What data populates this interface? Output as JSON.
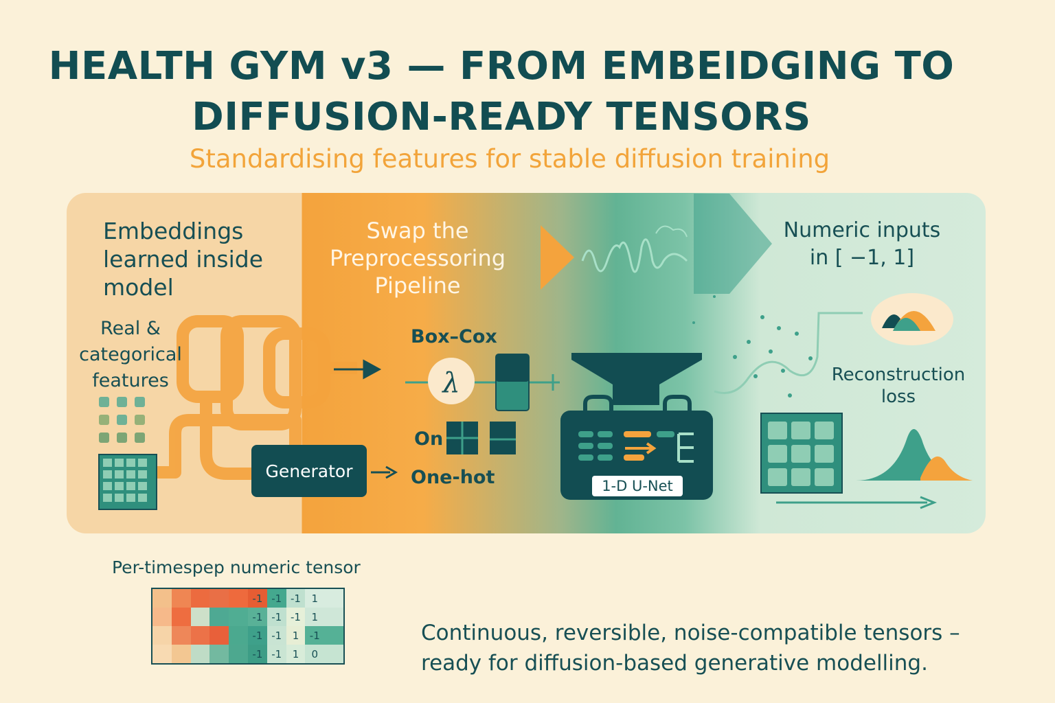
{
  "title": {
    "line1": "HEALTH GYM v3 — FROM EMBEIDGING TO",
    "line2": "DIFFUSION-READY TENSORS"
  },
  "subtitle": "Standardising features for stable diffusion training",
  "left_section": {
    "heading": [
      "Embeddings",
      "learned inside",
      "model"
    ],
    "features_label": [
      "Real &",
      "categorical",
      "features"
    ],
    "generator_label": "Generator"
  },
  "middle_section": {
    "heading": [
      "Swap the",
      "Preprocessoring",
      "Pipeline"
    ],
    "boxcox_label": "Box–Cox",
    "lambda_symbol": "λ",
    "on_label": "On",
    "onehot_label": "One-hot"
  },
  "right_section": {
    "heading": [
      "Numeric inputs",
      "in [ −1, 1]"
    ],
    "unet_label": "1-D U-Net",
    "reconstruction_label": [
      "Reconstruction",
      "loss"
    ]
  },
  "tensor": {
    "label": "Per-timespep numeric tensor",
    "rows": [
      [
        "",
        "",
        "",
        "",
        "",
        "-1",
        "-1",
        "-1",
        "1",
        ""
      ],
      [
        "",
        "",
        "",
        "",
        "",
        "-1",
        "-1",
        "-1",
        "1",
        ""
      ],
      [
        "",
        "",
        "",
        "",
        "",
        "-1",
        "-1",
        "1",
        "-1",
        ""
      ],
      [
        "",
        "",
        "",
        "",
        "",
        "-1",
        "-1",
        "1",
        "0",
        ""
      ]
    ],
    "colors": [
      [
        "#f3c08b",
        "#ef8653",
        "#ec6b3f",
        "#e96f46",
        "#ee6a3d",
        "#e65d33",
        "#44a88e",
        "#bfe0cf",
        "#d8ecdf",
        "#d8ecdf"
      ],
      [
        "#f6b98a",
        "#ee6d40",
        "#cde0c9",
        "#4ea993",
        "#50ad93",
        "#59b197",
        "#bfe0cf",
        "#e6f0d9",
        "#cfe7d8",
        "#cfe7d8"
      ],
      [
        "#f6d4a8",
        "#ee8759",
        "#ec7248",
        "#e8603a",
        "#4ba98f",
        "#3ea08a",
        "#c9e4d3",
        "#e7eed5",
        "#55b196",
        "#55b196"
      ],
      [
        "#f8dab2",
        "#f3c792",
        "#bfdcc6",
        "#73b9a0",
        "#4da88f",
        "#3d9d86",
        "#cae5d3",
        "#d8ecd9",
        "#c6e4d2",
        "#c6e4d2"
      ]
    ]
  },
  "caption": [
    "Continuous, reversible, noise-compatible tensors –",
    "ready for diffusion-based generative modelling."
  ],
  "colors": {
    "background": "#fbf1d9",
    "teal_dark": "#124d52",
    "orange": "#f2a43a",
    "teal_mid": "#3ea08a",
    "mint": "#d5ebdb"
  }
}
